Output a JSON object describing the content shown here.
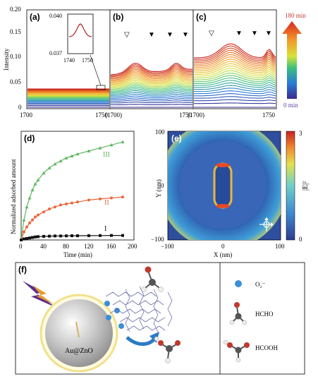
{
  "panel_a": {
    "label": "(a)",
    "ylabel": "Intensity",
    "yticks": [
      "0.20",
      "0.15",
      "0.10",
      "0.05",
      "0"
    ],
    "xticks": [
      "1700",
      "1750"
    ],
    "inset_yticks": [
      "0.040",
      "0.037"
    ],
    "inset_xticks": [
      "1740",
      "1750"
    ]
  },
  "panel_b": {
    "label": "(b)",
    "xticks": [
      "(1700)",
      "1750"
    ]
  },
  "panel_c": {
    "label": "(c)",
    "xticks": [
      "(1700)",
      "1750"
    ]
  },
  "colorbar_time": {
    "top": "180 min",
    "bottom": "0 min"
  },
  "panel_d": {
    "label": "(d)",
    "ylabel": "Normalized adsorbed amount",
    "xlabel": "Time (min)",
    "xticks": [
      "0",
      "40",
      "80",
      "120",
      "160",
      "200"
    ],
    "curve_labels": [
      "III",
      "II",
      "I"
    ]
  },
  "panel_e": {
    "label": "(e)",
    "xlabel": "X (nm)",
    "ylabel": "Y (nm)",
    "xticks": [
      "−100",
      "0",
      "100"
    ],
    "yticks": [
      "100",
      "0",
      "−100"
    ],
    "cbar_label": "|E|²",
    "cbar_ticks": [
      "3",
      "0"
    ]
  },
  "panel_f": {
    "label": "(f)",
    "particle_label": "Au@ZnO",
    "legend": [
      {
        "name": "O₂⁻",
        "icon": "superoxide-icon"
      },
      {
        "name": "HCHO",
        "icon": "formaldehyde-molecule-icon"
      },
      {
        "name": "HCOOH",
        "icon": "formic-acid-molecule-icon"
      }
    ]
  },
  "chart_data": [
    {
      "type": "line",
      "panel": "d",
      "xlabel": "Time (min)",
      "ylabel": "Normalized adsorbed amount",
      "xlim": [
        0,
        200
      ],
      "ylim": [
        0,
        1
      ],
      "series": [
        {
          "name": "III",
          "color": "#5cb85c",
          "x": [
            0,
            5,
            10,
            15,
            20,
            25,
            30,
            40,
            50,
            60,
            70,
            80,
            90,
            100,
            120,
            140,
            160,
            180
          ],
          "y": [
            0,
            0.2,
            0.33,
            0.42,
            0.5,
            0.56,
            0.6,
            0.67,
            0.72,
            0.76,
            0.79,
            0.82,
            0.84,
            0.86,
            0.89,
            0.92,
            0.95,
            0.98
          ]
        },
        {
          "name": "II",
          "color": "#e8663c",
          "x": [
            0,
            5,
            10,
            15,
            20,
            25,
            30,
            40,
            50,
            60,
            70,
            80,
            90,
            100,
            120,
            140,
            160,
            180
          ],
          "y": [
            0,
            0.08,
            0.13,
            0.17,
            0.2,
            0.23,
            0.25,
            0.28,
            0.31,
            0.33,
            0.35,
            0.36,
            0.37,
            0.38,
            0.4,
            0.41,
            0.42,
            0.43
          ]
        },
        {
          "name": "I",
          "color": "#111111",
          "x": [
            0,
            5,
            10,
            15,
            20,
            25,
            30,
            40,
            50,
            60,
            70,
            80,
            90,
            100,
            120,
            140,
            160,
            180
          ],
          "y": [
            0,
            0.01,
            0.015,
            0.02,
            0.025,
            0.03,
            0.033,
            0.036,
            0.038,
            0.04,
            0.04,
            0.041,
            0.042,
            0.042,
            0.043,
            0.044,
            0.045,
            0.045
          ]
        }
      ]
    }
  ]
}
